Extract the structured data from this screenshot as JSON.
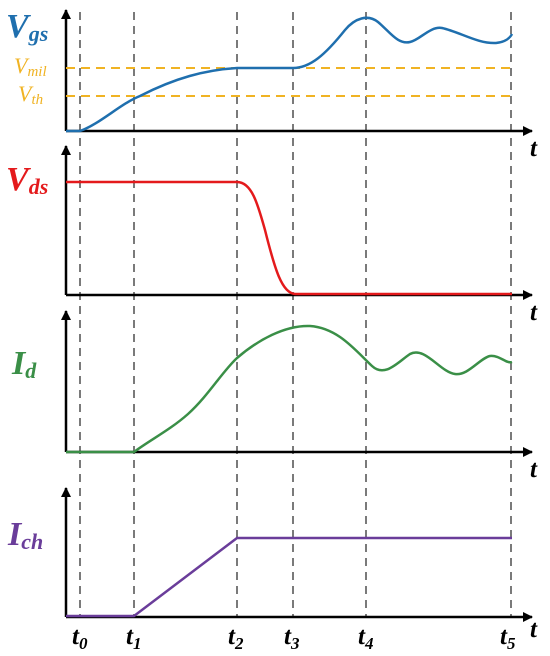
{
  "colors": {
    "vgs": "#1f6fae",
    "vds": "#e41a1c",
    "id": "#3a8f47",
    "ich": "#6a3d9a",
    "threshold": "#f0b323",
    "axis": "#000000",
    "gridline": "#7a7a7a"
  },
  "panels": [
    {
      "key": "vgs",
      "label_main": "V",
      "label_sub": "gs",
      "axis_label": "t"
    },
    {
      "key": "vds",
      "label_main": "V",
      "label_sub": "ds",
      "axis_label": "t"
    },
    {
      "key": "id",
      "label_main": "I",
      "label_sub": "d",
      "axis_label": "t"
    },
    {
      "key": "ich",
      "label_main": "I",
      "label_sub": "ch",
      "axis_label": "t"
    }
  ],
  "levels": [
    {
      "key": "vmil",
      "label_main": "V",
      "label_sub": "mil"
    },
    {
      "key": "vth",
      "label_main": "V",
      "label_sub": "th"
    }
  ],
  "time_markers": [
    {
      "main": "t",
      "sub": "0"
    },
    {
      "main": "t",
      "sub": "1"
    },
    {
      "main": "t",
      "sub": "2"
    },
    {
      "main": "t",
      "sub": "3"
    },
    {
      "main": "t",
      "sub": "4"
    },
    {
      "main": "t",
      "sub": "5"
    }
  ]
}
